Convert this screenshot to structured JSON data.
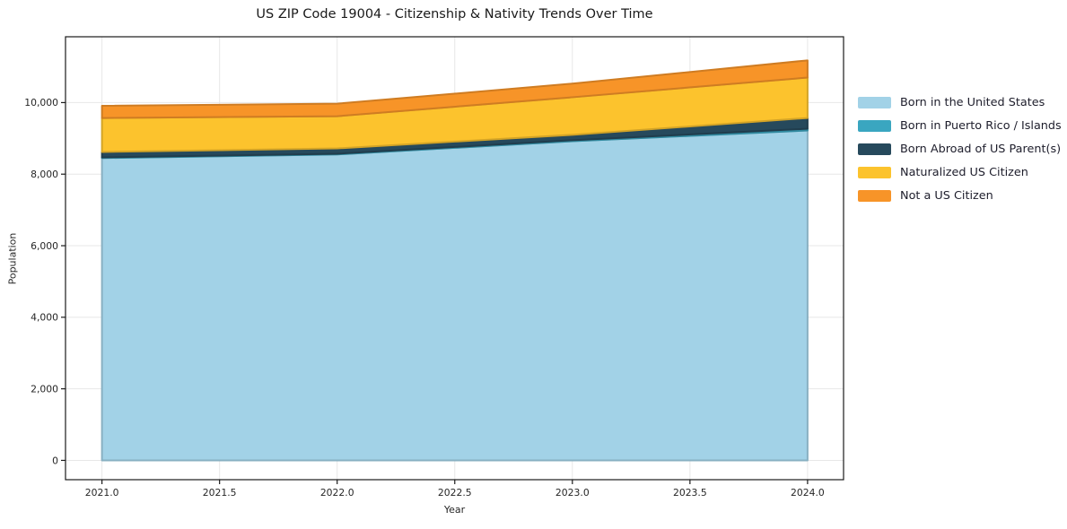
{
  "chart_data": {
    "type": "area",
    "stacked": true,
    "title": "US ZIP Code 19004 - Citizenship & Nativity Trends Over Time",
    "xlabel": "Year",
    "ylabel": "Population",
    "x": [
      2021,
      2022,
      2023,
      2024
    ],
    "series": [
      {
        "name": "Born in the United States",
        "color": "#a2d2e7",
        "values": [
          8450,
          8550,
          8920,
          9220
        ]
      },
      {
        "name": "Born in Puerto Rico / Islands",
        "color": "#3aa6c0",
        "values": [
          20,
          20,
          30,
          50
        ]
      },
      {
        "name": "Born Abroad of US Parent(s)",
        "color": "#26495c",
        "values": [
          150,
          150,
          150,
          300
        ]
      },
      {
        "name": "Naturalized US Citizen",
        "color": "#fcc32d",
        "values": [
          950,
          900,
          1050,
          1130
        ]
      },
      {
        "name": "Not a US Citizen",
        "color": "#f79428",
        "values": [
          340,
          350,
          380,
          480
        ]
      }
    ],
    "xticks": [
      2021.0,
      2021.5,
      2022.0,
      2022.5,
      2023.0,
      2023.5,
      2024.0
    ],
    "yticks": [
      0,
      2000,
      4000,
      6000,
      8000,
      10000
    ],
    "xlim": [
      2020.845,
      2024.153
    ],
    "ylim": [
      -540,
      11840
    ],
    "grid": true,
    "legend_position": "right",
    "background": "#ffffff",
    "frame_color": "#1a1a1a",
    "grid_color": "#e7e7e7",
    "text_color": "#262626"
  }
}
